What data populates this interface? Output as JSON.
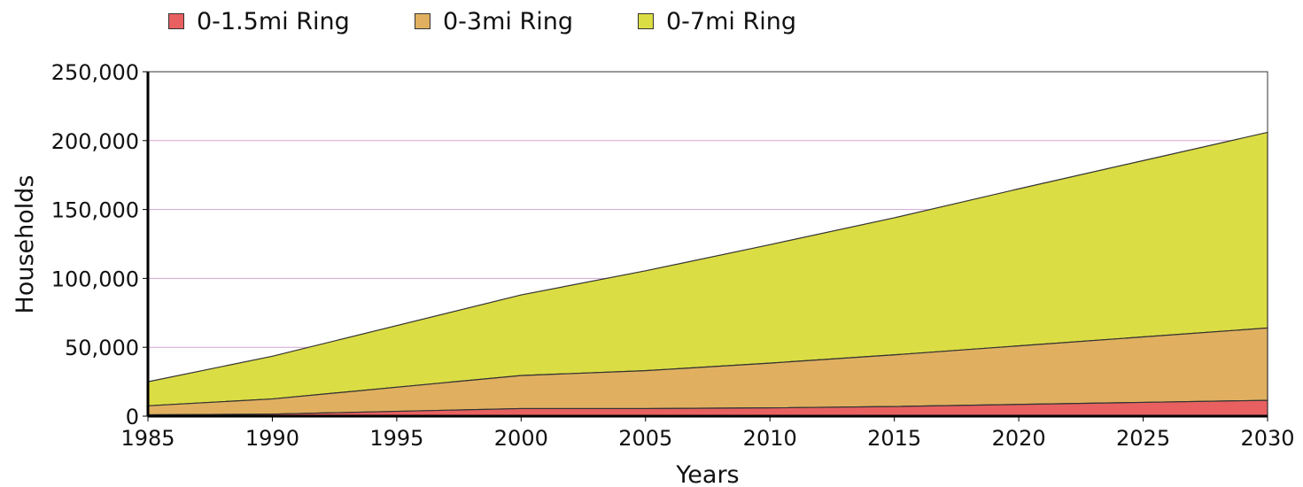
{
  "chart_data": {
    "type": "area",
    "stacked": true,
    "xlabel": "Years",
    "ylabel": "Households",
    "x": [
      1985,
      1990,
      2000,
      2005,
      2010,
      2015,
      2020,
      2025,
      2030
    ],
    "xticks": [
      "1985",
      "1990",
      "1995",
      "2000",
      "2005",
      "2010",
      "2015",
      "2020",
      "2025",
      "2030"
    ],
    "yticks": [
      "0",
      "50,000",
      "100,000",
      "150,000",
      "200,000",
      "250,000"
    ],
    "xlim": [
      1985,
      2030
    ],
    "ylim": [
      0,
      250000
    ],
    "grid": "horizontal",
    "legend_position": "top",
    "series": [
      {
        "name": "0-1.5mi Ring",
        "color": "#e86060",
        "values": [
          1000,
          1500,
          5500,
          5500,
          6000,
          7000,
          8500,
          10000,
          11500
        ]
      },
      {
        "name": "0-3mi Ring",
        "color": "#e0b060",
        "values": [
          7500,
          12500,
          29500,
          33000,
          38500,
          44500,
          51000,
          57500,
          64000
        ]
      },
      {
        "name": "0-7mi Ring",
        "color": "#dbdd44",
        "values": [
          25000,
          43500,
          88000,
          105500,
          124500,
          144000,
          165000,
          185500,
          206000
        ]
      }
    ]
  }
}
